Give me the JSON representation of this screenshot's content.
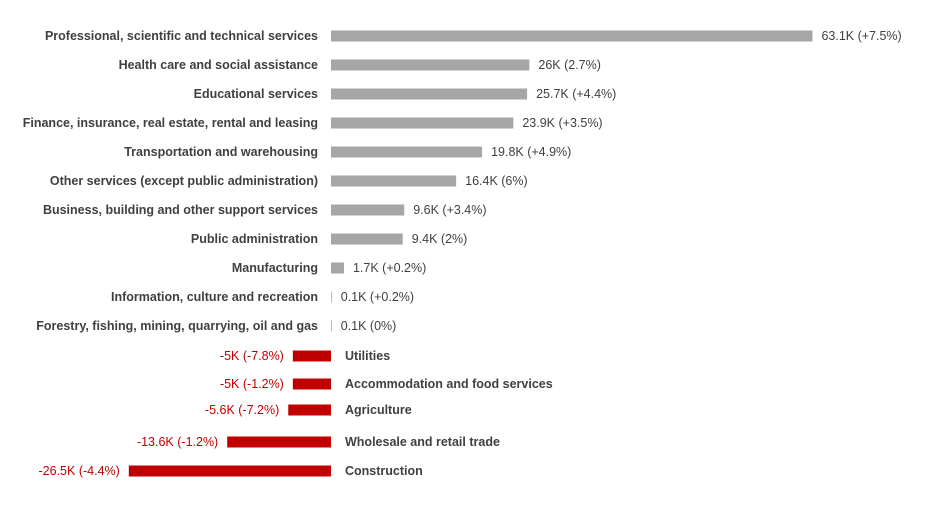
{
  "chart_data": {
    "type": "bar",
    "orientation": "horizontal",
    "categories": [
      "Professional, scientific and technical services",
      "Health care and social assistance",
      "Educational services",
      "Finance, insurance, real estate, rental and leasing",
      "Transportation and warehousing",
      "Other services (except public administration)",
      "Business, building and other support services",
      "Public administration",
      "Manufacturing",
      "Information, culture and recreation",
      "Forestry, fishing, mining, quarrying, oil and gas",
      "Utilities",
      "Accommodation and food services",
      "Agriculture",
      "Wholesale and retail trade",
      "Construction"
    ],
    "values": [
      63.1,
      26,
      25.7,
      23.9,
      19.8,
      16.4,
      9.6,
      9.4,
      1.7,
      0.1,
      0.1,
      -5,
      -5,
      -5.6,
      -13.6,
      -26.5
    ],
    "data_labels": [
      "63.1K (+7.5%)",
      "26K (2.7%)",
      "25.7K (+4.4%)",
      "23.9K (+3.5%)",
      "19.8K (+4.9%)",
      "16.4K (6%)",
      "9.6K (+3.4%)",
      "9.4K (2%)",
      "1.7K (+0.2%)",
      "0.1K (+0.2%)",
      "0.1K (0%)",
      "-5K (-7.8%)",
      "-5K (-1.2%)",
      "-5.6K (-7.2%)",
      "-13.6K (-1.2%)",
      "-26.5K (-4.4%)"
    ],
    "title": "",
    "xlabel": "",
    "ylabel": "",
    "xlim": [
      -26.5,
      63.1
    ],
    "grid": false,
    "legend": "none",
    "colors": {
      "positive": "#a6a6a6",
      "negative": "#c00000",
      "category_text": "#404040",
      "positive_label_text": "#404040",
      "negative_label_text": "#c00000"
    }
  }
}
